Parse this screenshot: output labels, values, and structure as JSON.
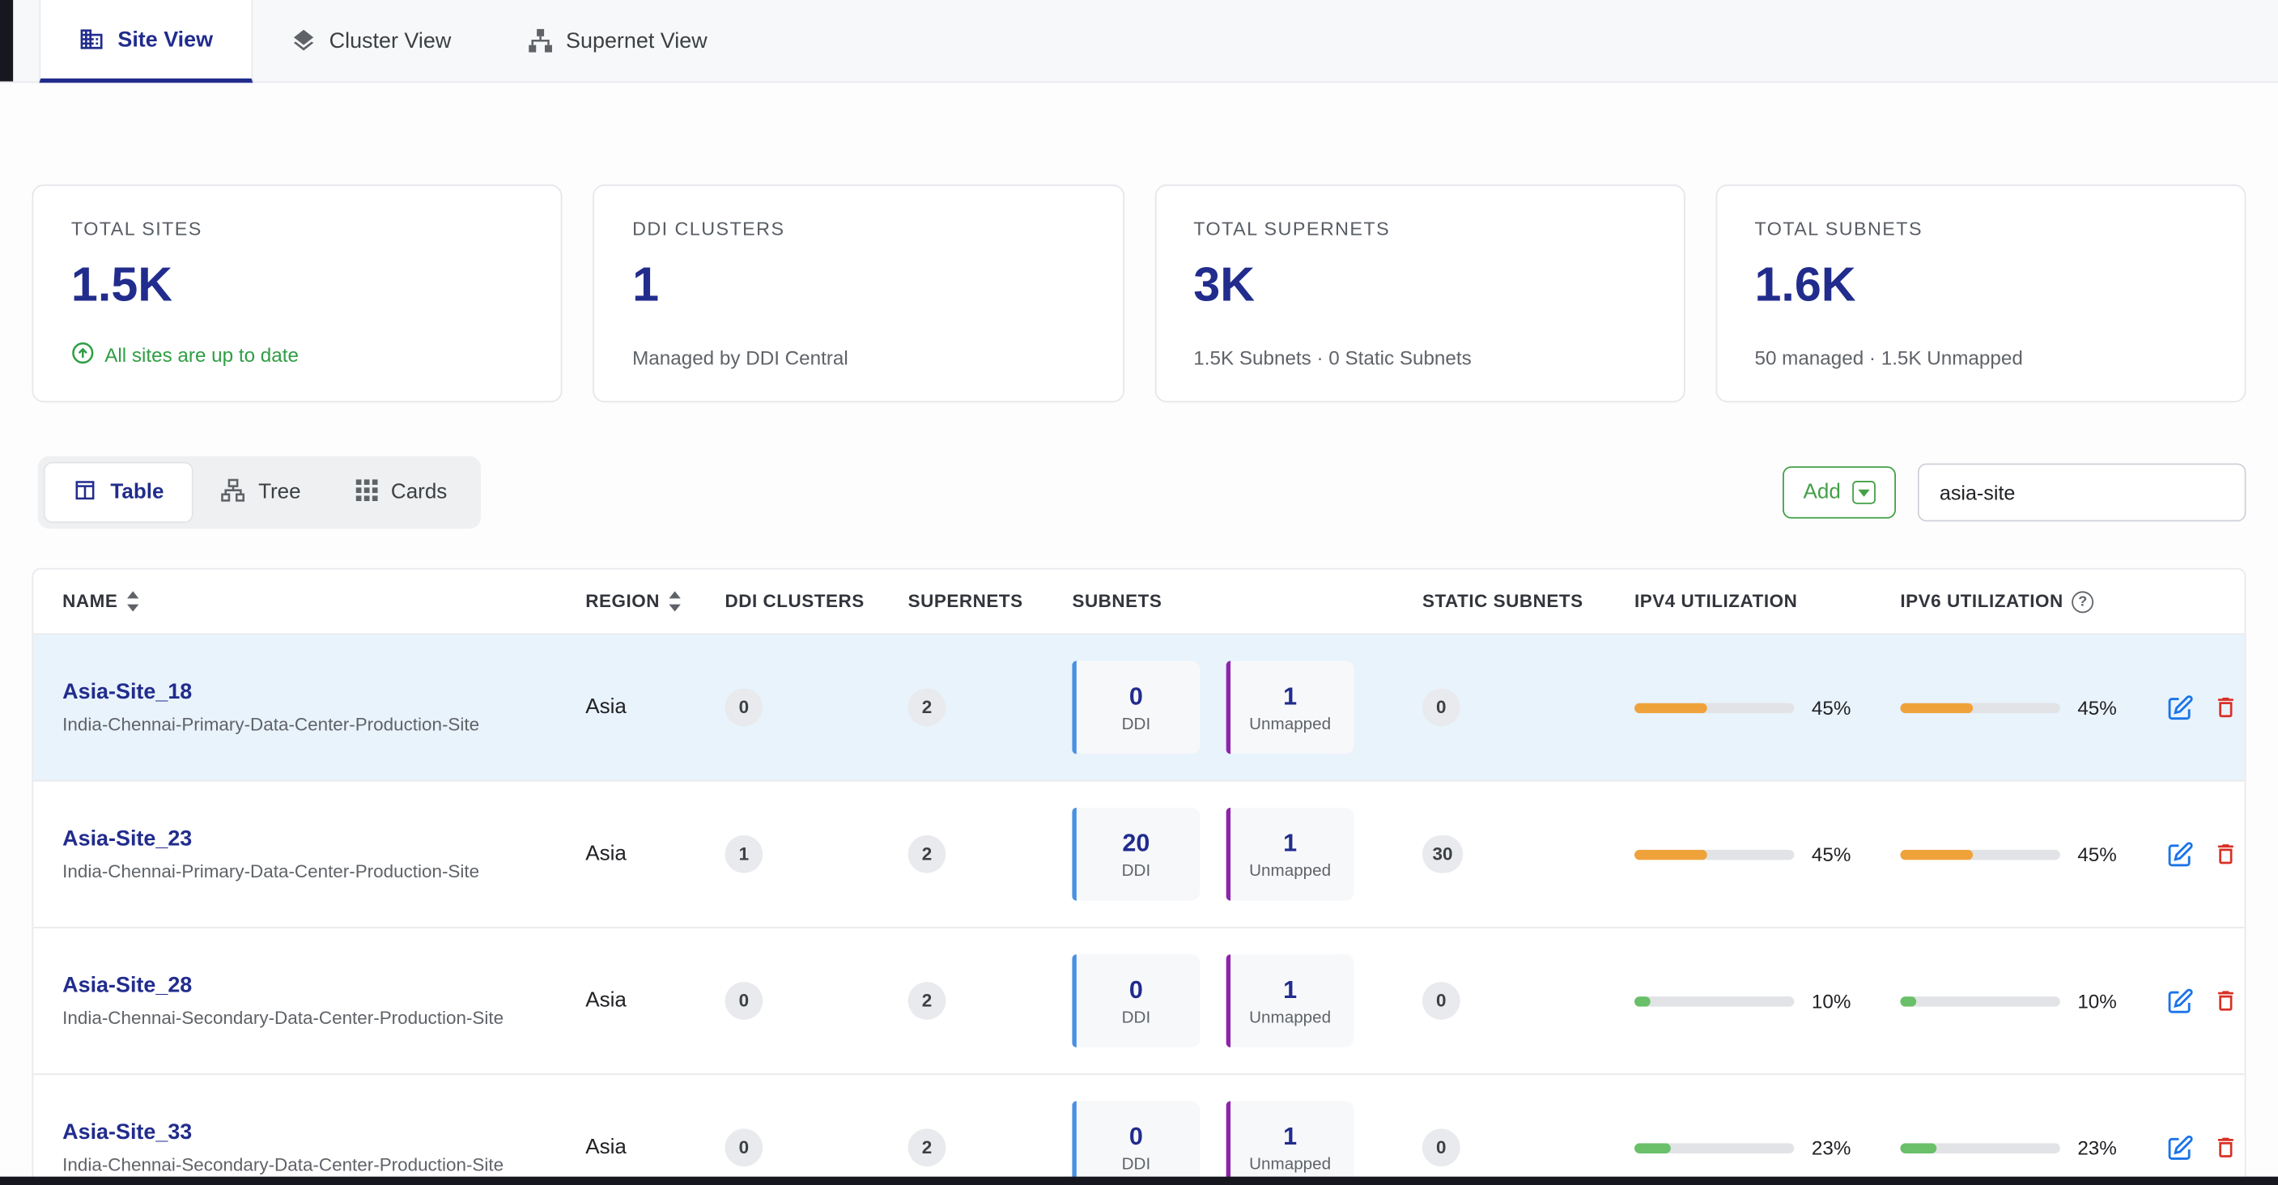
{
  "tabs": [
    {
      "label": "Site View"
    },
    {
      "label": "Cluster View"
    },
    {
      "label": "Supernet View"
    }
  ],
  "stats": [
    {
      "title": "TOTAL SITES",
      "value": "1.5K",
      "subtitle": "All sites are up to date"
    },
    {
      "title": "DDI CLUSTERS",
      "value": "1",
      "subtitle": "Managed by DDI Central"
    },
    {
      "title": "TOTAL SUPERNETS",
      "value": "3K",
      "subtitle": "1.5K Subnets · 0 Static Subnets"
    },
    {
      "title": "TOTAL SUBNETS",
      "value": "1.6K",
      "subtitle": "50 managed · 1.5K Unmapped"
    }
  ],
  "view_switcher": {
    "table_label": "Table",
    "tree_label": "Tree",
    "cards_label": "Cards"
  },
  "toolbar": {
    "add_label": "Add",
    "search_value": "asia-site"
  },
  "icons": {
    "help_glyph": "?"
  },
  "colors": {
    "accent_navy": "#212c8d",
    "success_green": "#2f9e44",
    "add_green": "#43a047",
    "bar_orange": "#f0a23a",
    "bar_green": "#6abf69",
    "ddi_blue": "#4a90e2",
    "unmapped_purple": "#8e24aa",
    "edit_blue": "#1a73e8",
    "delete_red": "#d93025",
    "row_highlight": "#e9f3fc"
  },
  "table": {
    "columns": [
      "NAME",
      "REGION",
      "DDI CLUSTERS",
      "SUPERNETS",
      "SUBNETS",
      "STATIC SUBNETS",
      "IPV4 UTILIZATION",
      "IPV6 UTILIZATION"
    ],
    "subnet_labels": {
      "ddi": "DDI",
      "unmapped": "Unmapped"
    },
    "rows": [
      {
        "name": "Asia-Site_18",
        "description": "India-Chennai-Primary-Data-Center-Production-Site",
        "region": "Asia",
        "ddi_clusters": "0",
        "supernets": "2",
        "subnets": {
          "ddi": "0",
          "unmapped": "1"
        },
        "static_subnets": "0",
        "ipv4": {
          "pct": 45,
          "color": "#f0a23a",
          "label": "45%"
        },
        "ipv6": {
          "pct": 45,
          "color": "#f0a23a",
          "label": "45%"
        }
      },
      {
        "name": "Asia-Site_23",
        "description": "India-Chennai-Primary-Data-Center-Production-Site",
        "region": "Asia",
        "ddi_clusters": "1",
        "supernets": "2",
        "subnets": {
          "ddi": "20",
          "unmapped": "1"
        },
        "static_subnets": "30",
        "ipv4": {
          "pct": 45,
          "color": "#f0a23a",
          "label": "45%"
        },
        "ipv6": {
          "pct": 45,
          "color": "#f0a23a",
          "label": "45%"
        }
      },
      {
        "name": "Asia-Site_28",
        "description": "India-Chennai-Secondary-Data-Center-Production-Site",
        "region": "Asia",
        "ddi_clusters": "0",
        "supernets": "2",
        "subnets": {
          "ddi": "0",
          "unmapped": "1"
        },
        "static_subnets": "0",
        "ipv4": {
          "pct": 10,
          "color": "#6abf69",
          "label": "10%"
        },
        "ipv6": {
          "pct": 10,
          "color": "#6abf69",
          "label": "10%"
        }
      },
      {
        "name": "Asia-Site_33",
        "description": "India-Chennai-Secondary-Data-Center-Production-Site",
        "region": "Asia",
        "ddi_clusters": "0",
        "supernets": "2",
        "subnets": {
          "ddi": "0",
          "unmapped": "1"
        },
        "static_subnets": "0",
        "ipv4": {
          "pct": 23,
          "color": "#6abf69",
          "label": "23%"
        },
        "ipv6": {
          "pct": 23,
          "color": "#6abf69",
          "label": "23%"
        }
      }
    ]
  }
}
